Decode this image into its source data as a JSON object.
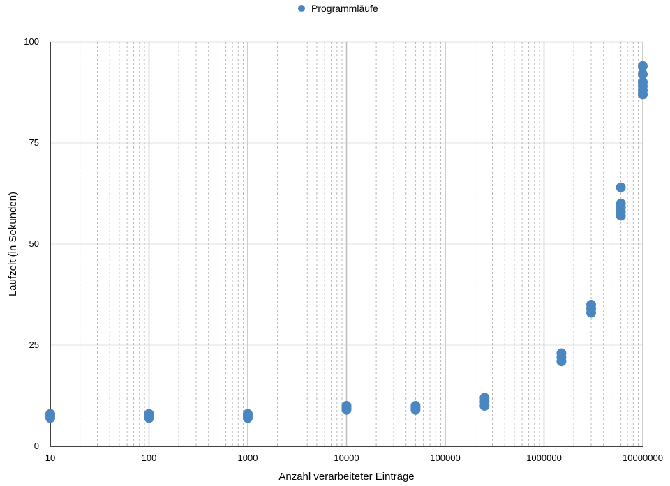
{
  "chart_data": {
    "type": "scatter",
    "title": "",
    "xlabel": "Anzahl verarbeiteter Einträge",
    "ylabel": "Laufzeit (in Sekunden)",
    "x_scale": "log",
    "xlim": [
      10,
      10000000
    ],
    "ylim": [
      0,
      100
    ],
    "x_ticks": [
      "10",
      "100",
      "1000",
      "10000",
      "100000",
      "1000000",
      "10000000"
    ],
    "y_ticks": [
      "0",
      "25",
      "50",
      "75",
      "100"
    ],
    "grid": true,
    "legend_position": "top-center",
    "series": [
      {
        "name": "Programmläufe",
        "color": "#4a86c0",
        "points": [
          {
            "x": 10,
            "y": 7
          },
          {
            "x": 10,
            "y": 7.5
          },
          {
            "x": 10,
            "y": 8
          },
          {
            "x": 100,
            "y": 7
          },
          {
            "x": 100,
            "y": 7.5
          },
          {
            "x": 100,
            "y": 8
          },
          {
            "x": 1000,
            "y": 7
          },
          {
            "x": 1000,
            "y": 7.5
          },
          {
            "x": 1000,
            "y": 8
          },
          {
            "x": 10000,
            "y": 9
          },
          {
            "x": 10000,
            "y": 9.5
          },
          {
            "x": 10000,
            "y": 10
          },
          {
            "x": 50000,
            "y": 9
          },
          {
            "x": 50000,
            "y": 9.5
          },
          {
            "x": 50000,
            "y": 10
          },
          {
            "x": 250000,
            "y": 10
          },
          {
            "x": 250000,
            "y": 11
          },
          {
            "x": 250000,
            "y": 12
          },
          {
            "x": 1500000,
            "y": 21
          },
          {
            "x": 1500000,
            "y": 22
          },
          {
            "x": 1500000,
            "y": 23
          },
          {
            "x": 3000000,
            "y": 33
          },
          {
            "x": 3000000,
            "y": 34
          },
          {
            "x": 3000000,
            "y": 35
          },
          {
            "x": 6000000,
            "y": 57
          },
          {
            "x": 6000000,
            "y": 58
          },
          {
            "x": 6000000,
            "y": 59
          },
          {
            "x": 6000000,
            "y": 60
          },
          {
            "x": 6000000,
            "y": 64
          },
          {
            "x": 10000000,
            "y": 87
          },
          {
            "x": 10000000,
            "y": 88
          },
          {
            "x": 10000000,
            "y": 89
          },
          {
            "x": 10000000,
            "y": 90
          },
          {
            "x": 10000000,
            "y": 92
          },
          {
            "x": 10000000,
            "y": 94
          }
        ]
      }
    ]
  }
}
